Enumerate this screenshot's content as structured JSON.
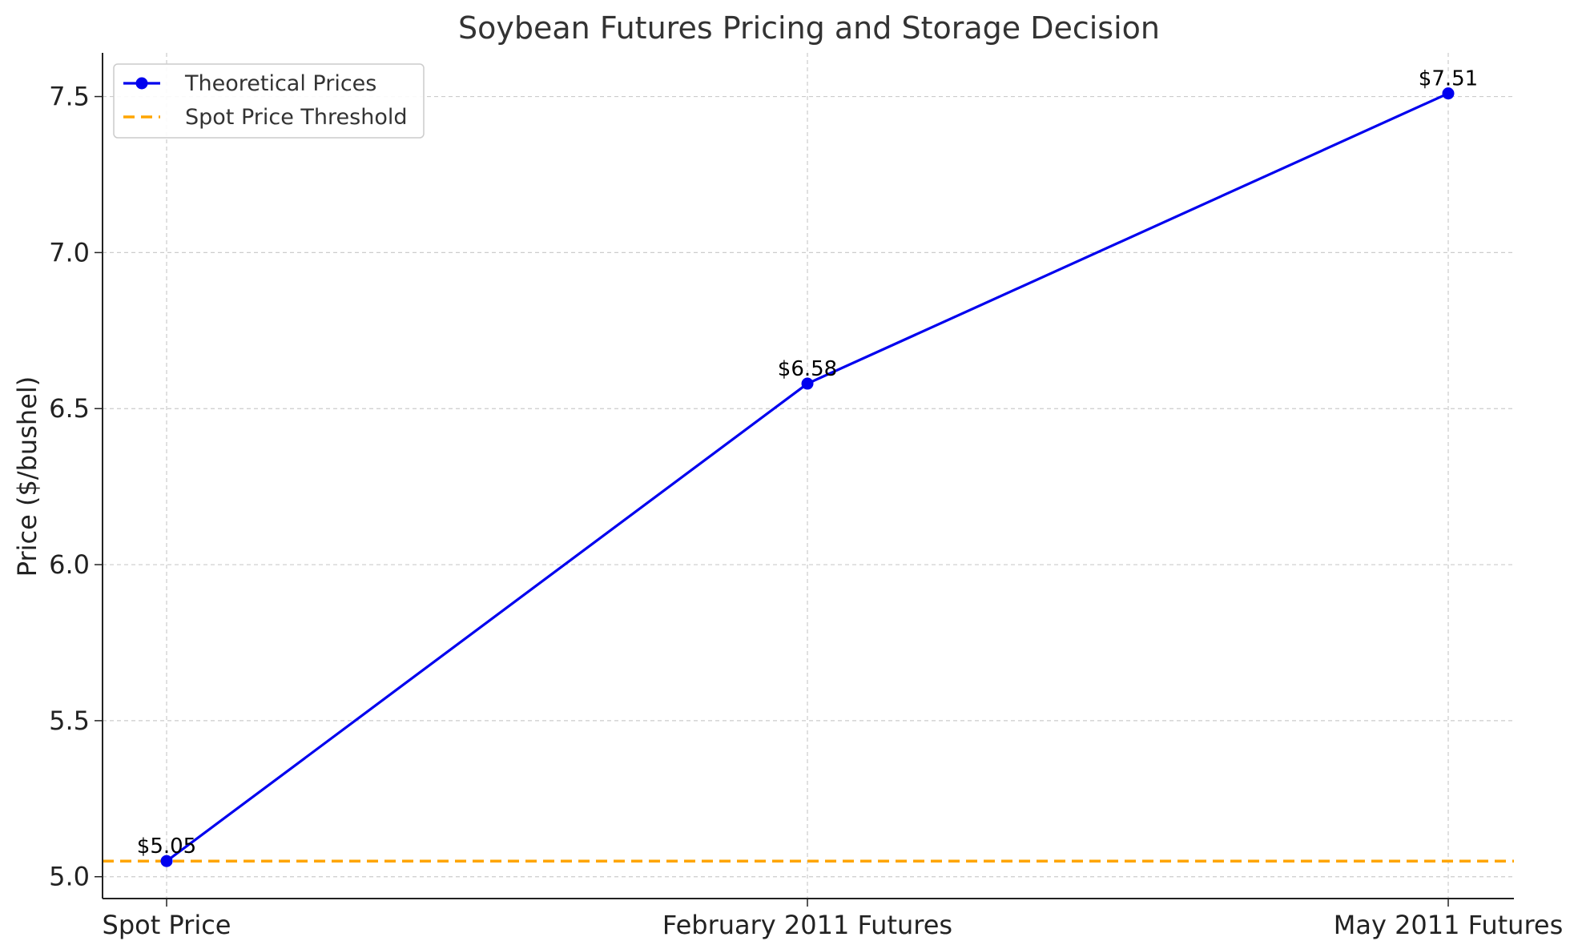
{
  "chart_data": {
    "type": "line",
    "title": "Soybean Futures Pricing and Storage Decision",
    "xlabel": "",
    "ylabel": "Price ($/bushel)",
    "categories": [
      "Spot Price",
      "February 2011 Futures",
      "May 2011 Futures"
    ],
    "series": [
      {
        "name": "Theoretical Prices",
        "values": [
          5.05,
          6.58,
          7.51
        ],
        "labels": [
          "$5.05",
          "$6.58",
          "$7.51"
        ],
        "color": "#0000ee",
        "marker": "circle"
      }
    ],
    "threshold": {
      "name": "Spot Price Threshold",
      "value": 5.05,
      "color": "#ffa500",
      "style": "dashed"
    },
    "ylim": [
      4.93,
      7.64
    ],
    "yticks": [
      {
        "value": 5.0,
        "label": "5.0"
      },
      {
        "value": 5.5,
        "label": "5.5"
      },
      {
        "value": 6.0,
        "label": "6.0"
      },
      {
        "value": 6.5,
        "label": "6.5"
      },
      {
        "value": 7.0,
        "label": "7.0"
      },
      {
        "value": 7.5,
        "label": "7.5"
      }
    ],
    "grid": true,
    "legend_position": "top-left"
  }
}
